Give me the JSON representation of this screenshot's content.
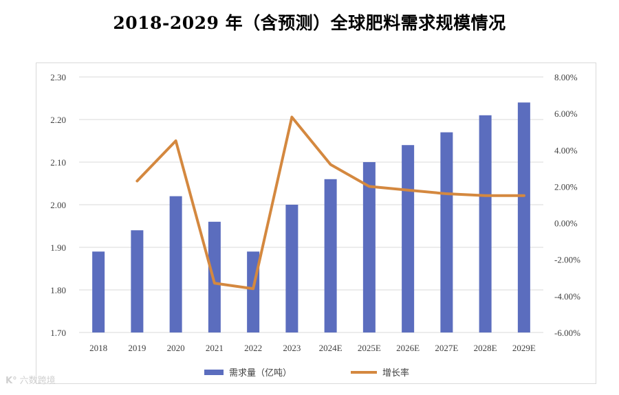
{
  "chart_data": {
    "type": "bar+line",
    "title": "2018-2029 年（含预测）全球肥料需求规模情况",
    "categories": [
      "2018",
      "2019",
      "2020",
      "2021",
      "2022",
      "2023",
      "2024E",
      "2025E",
      "2026E",
      "2027E",
      "2028E",
      "2029E"
    ],
    "series": [
      {
        "name": "需求量（亿吨）",
        "kind": "bar",
        "axis": "left",
        "color": "#5B6DBE",
        "values": [
          1.89,
          1.94,
          2.02,
          1.96,
          1.89,
          2.0,
          2.06,
          2.1,
          2.14,
          2.17,
          2.21,
          2.24
        ]
      },
      {
        "name": "增长率",
        "kind": "line",
        "axis": "right",
        "color": "#D4883F",
        "values": [
          null,
          2.3,
          4.5,
          -3.3,
          -3.6,
          5.8,
          3.2,
          2.0,
          1.8,
          1.6,
          1.5,
          1.5
        ]
      }
    ],
    "y_left": {
      "min": 1.7,
      "max": 2.3,
      "ticks": [
        "1.70",
        "1.80",
        "1.90",
        "2.00",
        "2.10",
        "2.20",
        "2.30"
      ]
    },
    "y_right": {
      "min": -6,
      "max": 8,
      "ticks": [
        "-6.00%",
        "-4.00%",
        "-2.00%",
        "0.00%",
        "2.00%",
        "4.00%",
        "6.00%",
        "8.00%"
      ]
    },
    "grid": true,
    "legend_position": "bottom"
  },
  "watermark": {
    "logo": "K°",
    "text": "六数跨境"
  }
}
